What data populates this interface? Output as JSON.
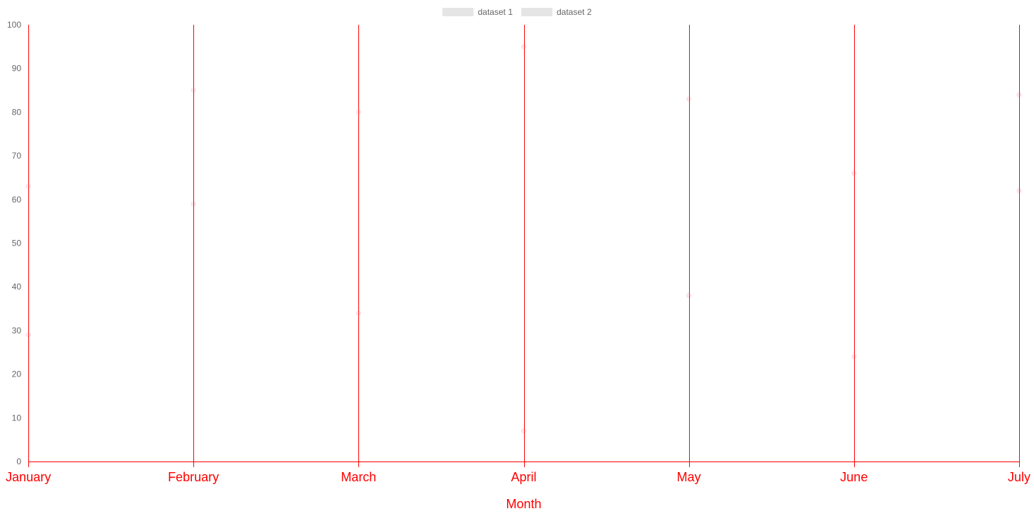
{
  "chart_data": {
    "type": "scatter",
    "title": "",
    "xlabel": "Month",
    "ylabel": "",
    "categories": [
      "January",
      "February",
      "March",
      "April",
      "May",
      "June",
      "July"
    ],
    "series": [
      {
        "name": "dataset 1",
        "values": [
          63,
          85,
          80,
          95,
          83,
          66,
          84
        ]
      },
      {
        "name": "dataset 2",
        "values": [
          29,
          59,
          34,
          7,
          38,
          24,
          62
        ]
      }
    ],
    "ylim": [
      0,
      100
    ],
    "yticks": [
      "0",
      "10",
      "20",
      "30",
      "40",
      "50",
      "60",
      "70",
      "80",
      "90",
      "100"
    ],
    "grid": {
      "x": true,
      "y": false
    },
    "legend_position": "top",
    "colors": {
      "x_axis_grid": "#ff0000",
      "x_axis_text": "#ff0000",
      "y_tick_text": "#666666",
      "legend_box": "#e5e5e5",
      "legend_text": "#666666",
      "point_fill": "rgba(255,99,132,0.15)",
      "point_stroke": "rgba(255,99,132,0.2)"
    }
  }
}
